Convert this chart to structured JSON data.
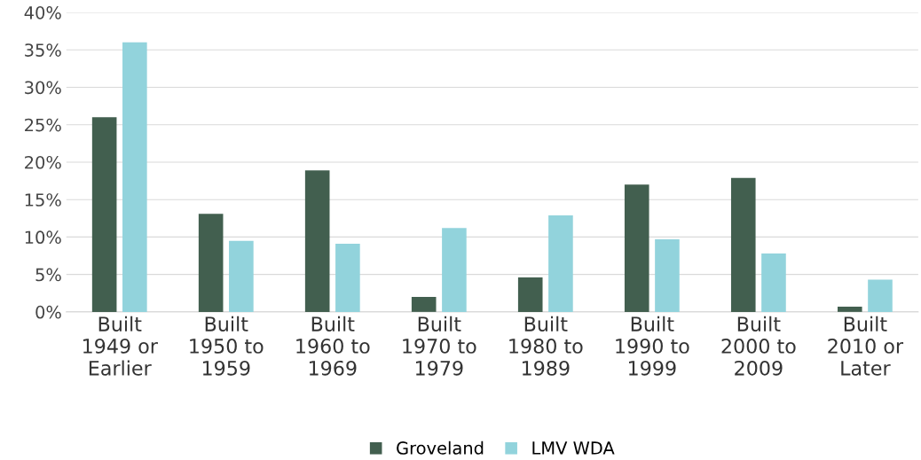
{
  "chart_data": {
    "type": "bar",
    "categories": [
      "Built\n1949 or\nEarlier",
      "Built\n1950 to\n1959",
      "Built\n1960 to\n1969",
      "Built\n1970 to\n1979",
      "Built\n1980 to\n1989",
      "Built\n1990 to\n1999",
      "Built\n2000 to\n2009",
      "Built\n2010 or\nLater"
    ],
    "series": [
      {
        "name": "Groveland",
        "color": "#425f4f",
        "values": [
          26.0,
          13.1,
          18.9,
          2.0,
          4.6,
          17.0,
          17.9,
          0.7
        ]
      },
      {
        "name": "LMV WDA",
        "color": "#92d3dc",
        "values": [
          36.0,
          9.5,
          9.1,
          11.2,
          12.9,
          9.7,
          7.8,
          4.3
        ]
      }
    ],
    "ylim": [
      0,
      40
    ],
    "yticks": [
      {
        "value": 0,
        "label": "0%"
      },
      {
        "value": 5,
        "label": "5%"
      },
      {
        "value": 10,
        "label": "10%"
      },
      {
        "value": 15,
        "label": "15%"
      },
      {
        "value": 20,
        "label": "20%"
      },
      {
        "value": 25,
        "label": "25%"
      },
      {
        "value": 30,
        "label": "30%"
      },
      {
        "value": 35,
        "label": "35%"
      },
      {
        "value": 40,
        "label": "40%"
      }
    ],
    "grid": "y",
    "legend": "bottom"
  }
}
